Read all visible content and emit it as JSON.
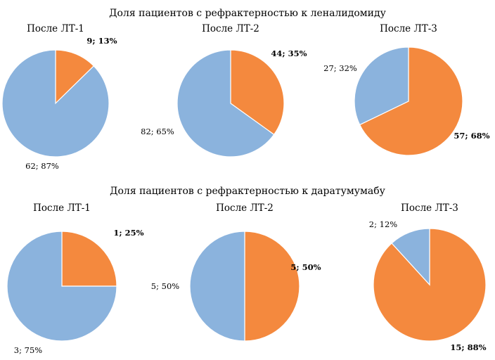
{
  "colors": {
    "refractory": "#F4893E",
    "other": "#8BB3DD",
    "stroke": "#ffffff"
  },
  "chart_data": [
    {
      "type": "pie",
      "title": "Доля пациентов с рефрактерностью к леналидомиду",
      "charts": [
        {
          "title": "После ЛТ-1",
          "slices": [
            {
              "value": 9,
              "label": "9; 13%",
              "color": "refractory"
            },
            {
              "value": 62,
              "label": "62; 87%",
              "color": "other"
            }
          ]
        },
        {
          "title": "После ЛТ-2",
          "slices": [
            {
              "value": 44,
              "label": "44; 35%",
              "color": "refractory"
            },
            {
              "value": 82,
              "label": "82; 65%",
              "color": "other"
            }
          ]
        },
        {
          "title": "После ЛТ-3",
          "slices": [
            {
              "value": 57,
              "label": "57; 68%",
              "color": "refractory"
            },
            {
              "value": 27,
              "label": "27; 32%",
              "color": "other"
            }
          ]
        }
      ]
    },
    {
      "type": "pie",
      "title": "Доля пациентов с рефрактерностью к даратумумабу",
      "charts": [
        {
          "title": "После ЛТ-1",
          "slices": [
            {
              "value": 1,
              "label": "1; 25%",
              "color": "refractory"
            },
            {
              "value": 3,
              "label": "3; 75%",
              "color": "other"
            }
          ]
        },
        {
          "title": "После ЛТ-2",
          "slices": [
            {
              "value": 5,
              "label": "5; 50%",
              "color": "refractory"
            },
            {
              "value": 5,
              "label": "5; 50%",
              "color": "other"
            }
          ]
        },
        {
          "title": "После ЛТ-3",
          "slices": [
            {
              "value": 15,
              "label": "15; 88%",
              "color": "refractory"
            },
            {
              "value": 2,
              "label": "2; 12%",
              "color": "other"
            }
          ]
        }
      ]
    }
  ]
}
